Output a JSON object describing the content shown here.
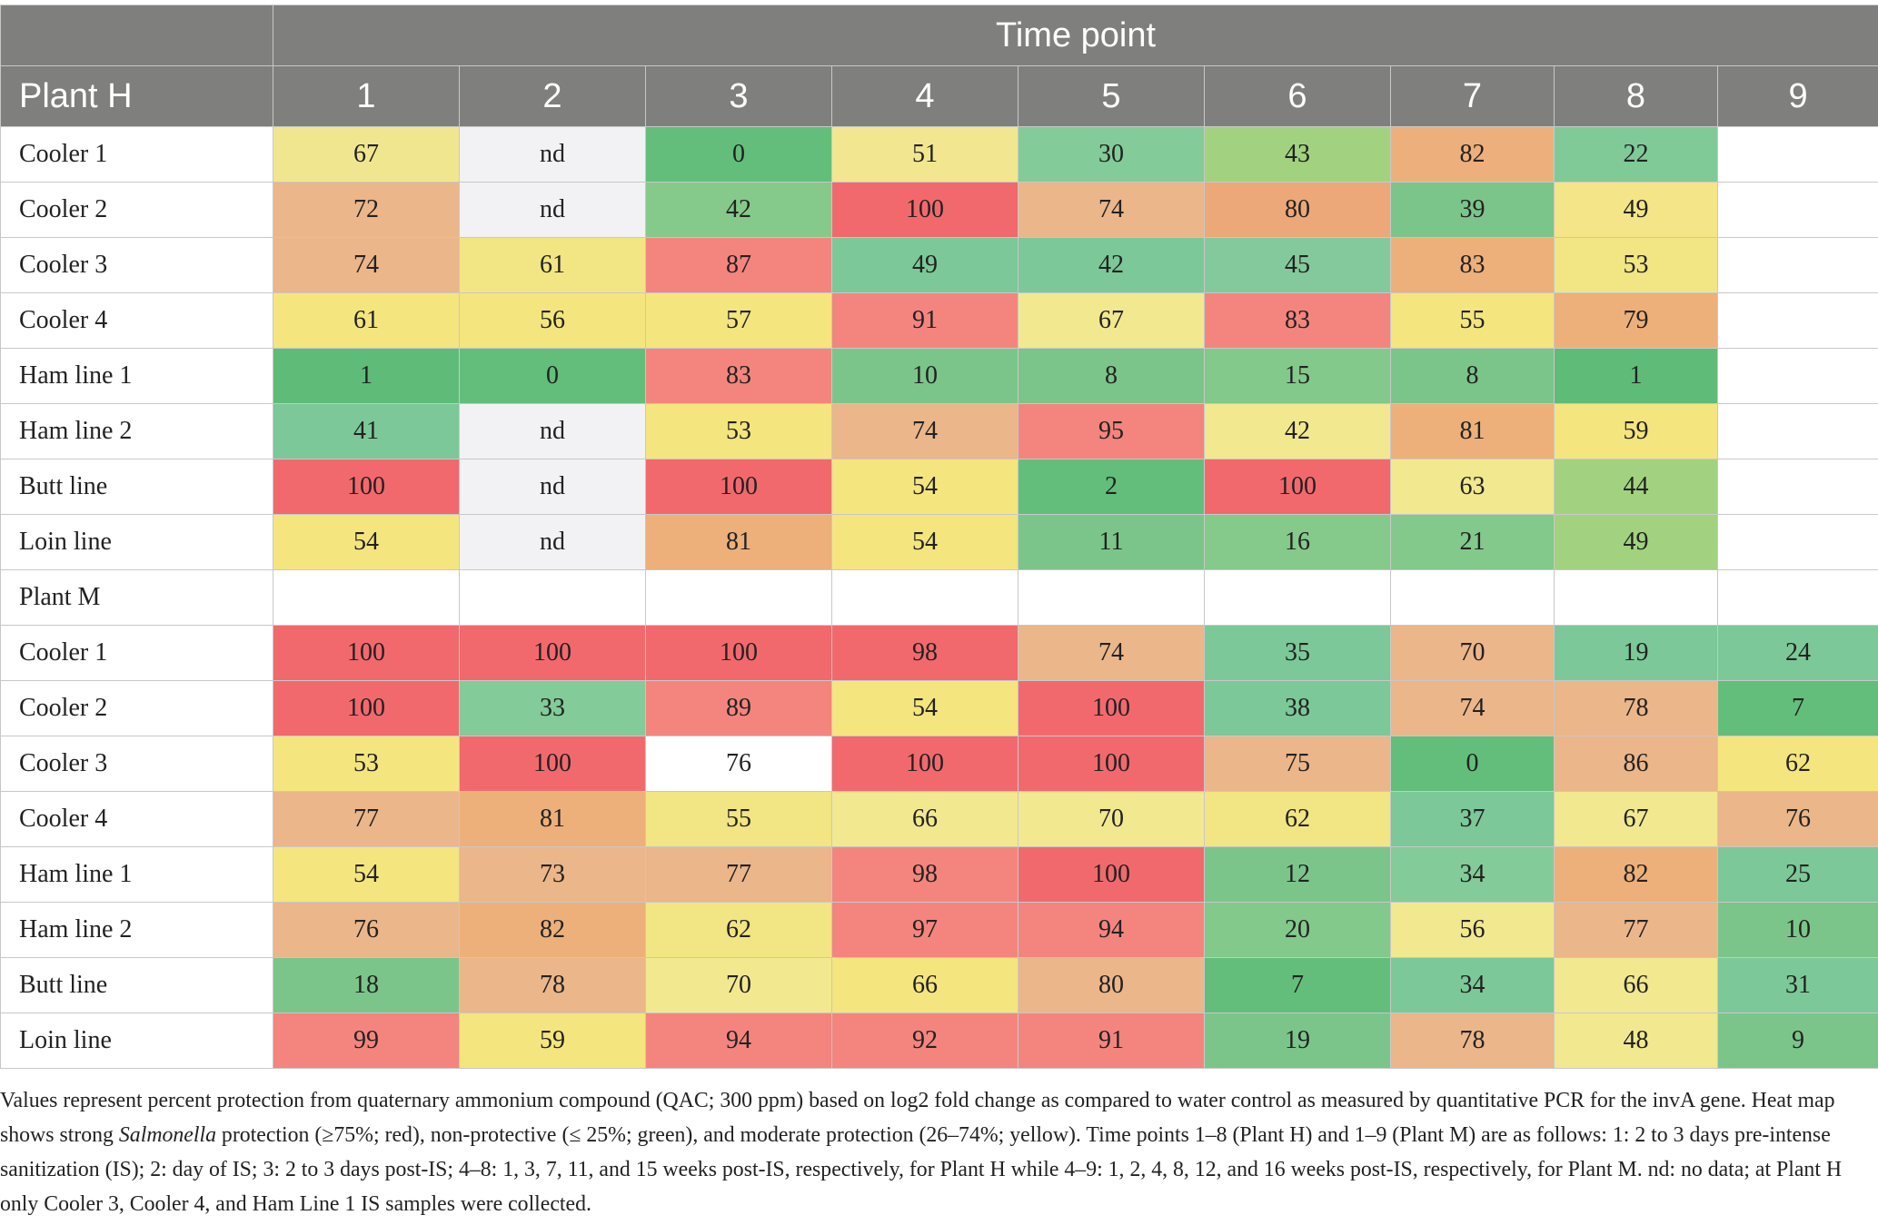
{
  "table": {
    "time_header": "Time point",
    "plant_h_label": "Plant H",
    "time_points": [
      "1",
      "2",
      "3",
      "4",
      "5",
      "6",
      "7",
      "8",
      "9"
    ],
    "plant_h_rows": [
      {
        "label": "Cooler 1",
        "values": [
          "67",
          "nd",
          "0",
          "51",
          "30",
          "43",
          "82",
          "22",
          ""
        ]
      },
      {
        "label": "Cooler 2",
        "values": [
          "72",
          "nd",
          "42",
          "100",
          "74",
          "80",
          "39",
          "49",
          ""
        ]
      },
      {
        "label": "Cooler 3",
        "values": [
          "74",
          "61",
          "87",
          "49",
          "42",
          "45",
          "83",
          "53",
          ""
        ]
      },
      {
        "label": "Cooler 4",
        "values": [
          "61",
          "56",
          "57",
          "91",
          "67",
          "83",
          "55",
          "79",
          ""
        ]
      },
      {
        "label": "Ham line 1",
        "values": [
          "1",
          "0",
          "83",
          "10",
          "8",
          "15",
          "8",
          "1",
          ""
        ]
      },
      {
        "label": "Ham line 2",
        "values": [
          "41",
          "nd",
          "53",
          "74",
          "95",
          "42",
          "81",
          "59",
          ""
        ]
      },
      {
        "label": "Butt line",
        "values": [
          "100",
          "nd",
          "100",
          "54",
          "2",
          "100",
          "63",
          "44",
          ""
        ]
      },
      {
        "label": "Loin line",
        "values": [
          "54",
          "nd",
          "81",
          "54",
          "11",
          "16",
          "21",
          "49",
          ""
        ]
      }
    ],
    "plant_m_label": "Plant M",
    "plant_m_rows": [
      {
        "label": "Cooler 1",
        "values": [
          "100",
          "100",
          "100",
          "98",
          "74",
          "35",
          "70",
          "19",
          "24"
        ]
      },
      {
        "label": "Cooler 2",
        "values": [
          "100",
          "33",
          "89",
          "54",
          "100",
          "38",
          "74",
          "78",
          "7"
        ]
      },
      {
        "label": "Cooler 3",
        "values": [
          "53",
          "100",
          "76",
          "100",
          "100",
          "75",
          "0",
          "86",
          "62"
        ]
      },
      {
        "label": "Cooler 4",
        "values": [
          "77",
          "81",
          "55",
          "66",
          "70",
          "62",
          "37",
          "67",
          "76"
        ]
      },
      {
        "label": "Ham line 1",
        "values": [
          "54",
          "73",
          "77",
          "98",
          "100",
          "12",
          "34",
          "82",
          "25"
        ]
      },
      {
        "label": "Ham line 2",
        "values": [
          "76",
          "82",
          "62",
          "97",
          "94",
          "20",
          "56",
          "77",
          "10"
        ]
      },
      {
        "label": "Butt line",
        "values": [
          "18",
          "78",
          "70",
          "66",
          "80",
          "7",
          "34",
          "66",
          "31"
        ]
      },
      {
        "label": "Loin line",
        "values": [
          "99",
          "59",
          "94",
          "92",
          "91",
          "19",
          "78",
          "48",
          "9"
        ]
      }
    ],
    "cell_colors": {
      "plant_h": [
        [
          "#f1e690",
          "#f2f2f4",
          "#63be7b",
          "#f2e690",
          "#83cb98",
          "#a2d27f",
          "#edb07c",
          "#80ca98",
          "#ffffff"
        ],
        [
          "#ebb68a",
          "#f2f2f4",
          "#85c98b",
          "#f2696d",
          "#ebb68a",
          "#eca878",
          "#7cc58a",
          "#f4e588",
          "#ffffff"
        ],
        [
          "#ebb68a",
          "#f2e583",
          "#f4857e",
          "#7cc898",
          "#7cc898",
          "#84c99c",
          "#edb07a",
          "#f2e583",
          "#ffffff"
        ],
        [
          "#f4e57e",
          "#f4e57e",
          "#f4e57e",
          "#f4857e",
          "#f2e890",
          "#f4857e",
          "#f4e57e",
          "#edb07a",
          "#ffffff"
        ],
        [
          "#5fbc78",
          "#63be7b",
          "#f4857e",
          "#7cc58a",
          "#7cc58a",
          "#82c98b",
          "#7cc58a",
          "#5fbc78",
          "#ffffff"
        ],
        [
          "#7cc898",
          "#f2f2f4",
          "#f4e57e",
          "#ebb68a",
          "#f4857e",
          "#f2e890",
          "#edb07a",
          "#f4e57e",
          "#ffffff"
        ],
        [
          "#f2696d",
          "#f2f2f4",
          "#f2696d",
          "#f4e57e",
          "#63be7b",
          "#f2696d",
          "#f2e890",
          "#a2d27f",
          "#ffffff"
        ],
        [
          "#f4e57e",
          "#f2f2f4",
          "#edb07a",
          "#f4e57e",
          "#7cc58a",
          "#85c98b",
          "#82c98b",
          "#a2d27f",
          "#ffffff"
        ]
      ],
      "plant_m": [
        [
          "#f2696d",
          "#f2696d",
          "#f2696d",
          "#f2696d",
          "#ebb68a",
          "#7cc898",
          "#ebb68a",
          "#7cc898",
          "#7cc898"
        ],
        [
          "#f2696d",
          "#83cb98",
          "#f4857e",
          "#f4e57e",
          "#f2696d",
          "#7cc898",
          "#ebb68a",
          "#ebb68a",
          "#63be7b"
        ],
        [
          "#f4e57e",
          "#f2696d",
          "#ffffff",
          "#f2696d",
          "#f2696d",
          "#ebb68a",
          "#63be7b",
          "#ebb68a",
          "#f4e57e"
        ],
        [
          "#ebb68a",
          "#edb07a",
          "#f2e583",
          "#f2e890",
          "#f2e890",
          "#f2e583",
          "#7cc898",
          "#f2e890",
          "#ebb68a"
        ],
        [
          "#f4e57e",
          "#ebb68a",
          "#ebb68a",
          "#f4857e",
          "#f2696d",
          "#7cc58a",
          "#83cb98",
          "#edb07a",
          "#7cc898"
        ],
        [
          "#ebb68a",
          "#edb07a",
          "#f2e583",
          "#f4857e",
          "#f4857e",
          "#82c98b",
          "#f2e890",
          "#ebb68a",
          "#7cc58a"
        ],
        [
          "#7cc58a",
          "#ebb68a",
          "#f2e890",
          "#f4e57e",
          "#ebb68a",
          "#63be7b",
          "#7cc898",
          "#f2e890",
          "#7cc898"
        ],
        [
          "#f4857e",
          "#f4e57e",
          "#f4857e",
          "#f4857e",
          "#f4857e",
          "#7cc58a",
          "#ebb68a",
          "#f2e890",
          "#7cc58a"
        ]
      ]
    }
  },
  "footnote": "Values represent percent protection from quaternary ammonium compound (QAC; 300 ppm) based on log2 fold change as compared to water control as measured by quantitative PCR for the invA gene. Heat map shows strong Salmonella protection (≥75%; red), non-protective (≤ 25%; green), and moderate protection (26–74%; yellow). Time points 1–8 (Plant H) and 1–9 (Plant M) are as follows: 1: 2 to 3 days pre-intense sanitization (IS); 2: day of IS; 3: 2 to 3 days post-IS; 4–8: 1, 3, 7, 11, and 15 weeks post-IS, respectively, for Plant H while 4–9: 1, 2, 4, 8, 12, and 16 weeks post-IS, respectively, for Plant M. nd: no data; at Plant H only Cooler 3, Cooler 4, and Ham Line 1 IS samples were collected."
}
